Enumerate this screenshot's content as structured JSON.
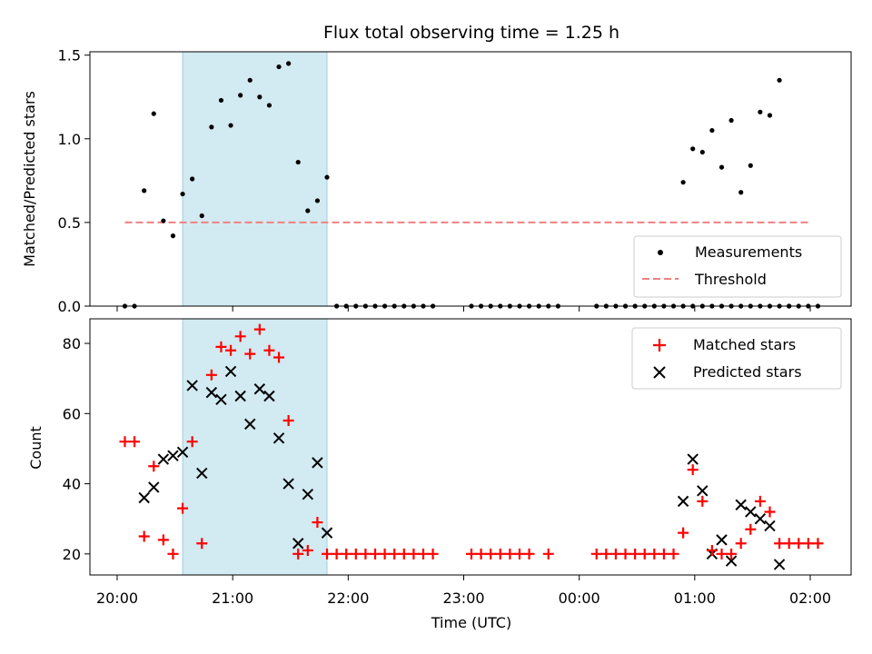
{
  "chart_data": [
    {
      "type": "scatter",
      "title": "Flux total observing time = 1.25 h",
      "xlabel": "",
      "ylabel": "Matched/Predicted stars",
      "ylim": [
        0,
        1.52
      ],
      "yticks": [
        "0.0",
        "0.5",
        "1.0",
        "1.5"
      ],
      "ytick_values": [
        0,
        0.5,
        1.0,
        1.5
      ],
      "shaded_interval": [
        "20:34",
        "21:49"
      ],
      "legend_position": "lower-right",
      "series": [
        {
          "name": "Measurements",
          "marker": "dot",
          "color": "#000000",
          "points": [
            [
              "20:04",
              0
            ],
            [
              "20:09",
              0
            ],
            [
              "20:14",
              0.69
            ],
            [
              "20:19",
              1.15
            ],
            [
              "20:24",
              0.51
            ],
            [
              "20:29",
              0.42
            ],
            [
              "20:34",
              0.67
            ],
            [
              "20:39",
              0.76
            ],
            [
              "20:44",
              0.54
            ],
            [
              "20:49",
              1.07
            ],
            [
              "20:54",
              1.23
            ],
            [
              "20:59",
              1.08
            ],
            [
              "21:04",
              1.26
            ],
            [
              "21:09",
              1.35
            ],
            [
              "21:14",
              1.25
            ],
            [
              "21:19",
              1.2
            ],
            [
              "21:24",
              1.43
            ],
            [
              "21:29",
              1.45
            ],
            [
              "21:34",
              0.86
            ],
            [
              "21:39",
              0.57
            ],
            [
              "21:44",
              0.63
            ],
            [
              "21:49",
              0.77
            ],
            [
              "21:54",
              0
            ],
            [
              "21:59",
              0
            ],
            [
              "22:04",
              0
            ],
            [
              "22:09",
              0
            ],
            [
              "22:14",
              0
            ],
            [
              "22:19",
              0
            ],
            [
              "22:24",
              0
            ],
            [
              "22:29",
              0
            ],
            [
              "22:34",
              0
            ],
            [
              "22:39",
              0
            ],
            [
              "22:44",
              0
            ],
            [
              "23:04",
              0
            ],
            [
              "23:09",
              0
            ],
            [
              "23:14",
              0
            ],
            [
              "23:19",
              0
            ],
            [
              "23:24",
              0
            ],
            [
              "23:29",
              0
            ],
            [
              "23:34",
              0
            ],
            [
              "23:39",
              0
            ],
            [
              "23:44",
              0
            ],
            [
              "23:49",
              0
            ],
            [
              "00:09",
              0
            ],
            [
              "00:14",
              0
            ],
            [
              "00:19",
              0
            ],
            [
              "00:24",
              0
            ],
            [
              "00:29",
              0
            ],
            [
              "00:34",
              0
            ],
            [
              "00:39",
              0
            ],
            [
              "00:44",
              0
            ],
            [
              "00:49",
              0
            ],
            [
              "00:54",
              0
            ],
            [
              "00:59",
              0
            ],
            [
              "01:04",
              0
            ],
            [
              "01:09",
              0
            ],
            [
              "01:14",
              0
            ],
            [
              "01:19",
              0
            ],
            [
              "01:24",
              0
            ],
            [
              "01:29",
              0
            ],
            [
              "01:34",
              0
            ],
            [
              "01:39",
              0
            ],
            [
              "01:44",
              0
            ],
            [
              "01:49",
              0
            ],
            [
              "00:54",
              0.74
            ],
            [
              "00:59",
              0.94
            ],
            [
              "01:04",
              0.92
            ],
            [
              "01:09",
              1.05
            ],
            [
              "01:14",
              0.83
            ],
            [
              "01:19",
              1.11
            ],
            [
              "01:24",
              0.68
            ],
            [
              "01:29",
              0.84
            ],
            [
              "01:34",
              1.16
            ],
            [
              "01:39",
              1.14
            ],
            [
              "01:44",
              1.35
            ],
            [
              "01:49",
              0
            ],
            [
              "01:54",
              0
            ],
            [
              "01:59",
              0
            ],
            [
              "02:04",
              0
            ]
          ]
        },
        {
          "name": "Threshold",
          "style": "dashed",
          "color": "#f08080",
          "points": [
            [
              "20:04",
              0.5
            ],
            [
              "02:00",
              0.5
            ]
          ]
        }
      ]
    },
    {
      "type": "scatter",
      "title": "",
      "xlabel": "Time (UTC)",
      "ylabel": "Count",
      "ylim": [
        14,
        87
      ],
      "yticks": [
        "20",
        "40",
        "60",
        "80"
      ],
      "ytick_values": [
        20,
        40,
        60,
        80
      ],
      "xticks": [
        "20:00",
        "21:00",
        "22:00",
        "23:00",
        "00:00",
        "01:00",
        "02:00"
      ],
      "shaded_interval": [
        "20:34",
        "21:49"
      ],
      "legend_position": "upper-right",
      "series": [
        {
          "name": "Matched stars",
          "marker": "plus",
          "color": "#ff0000",
          "points": [
            [
              "20:04",
              52
            ],
            [
              "20:09",
              52
            ],
            [
              "20:14",
              25
            ],
            [
              "20:19",
              45
            ],
            [
              "20:24",
              24
            ],
            [
              "20:29",
              20
            ],
            [
              "20:34",
              33
            ],
            [
              "20:39",
              52
            ],
            [
              "20:44",
              23
            ],
            [
              "20:49",
              71
            ],
            [
              "20:54",
              79
            ],
            [
              "20:59",
              78
            ],
            [
              "21:04",
              82
            ],
            [
              "21:09",
              77
            ],
            [
              "21:14",
              84
            ],
            [
              "21:19",
              78
            ],
            [
              "21:24",
              76
            ],
            [
              "21:29",
              58
            ],
            [
              "21:34",
              20
            ],
            [
              "21:39",
              21
            ],
            [
              "21:44",
              29
            ],
            [
              "21:49",
              20
            ],
            [
              "21:54",
              20
            ],
            [
              "21:59",
              20
            ],
            [
              "22:04",
              20
            ],
            [
              "22:09",
              20
            ],
            [
              "22:14",
              20
            ],
            [
              "22:19",
              20
            ],
            [
              "22:24",
              20
            ],
            [
              "22:29",
              20
            ],
            [
              "22:34",
              20
            ],
            [
              "22:39",
              20
            ],
            [
              "22:44",
              20
            ],
            [
              "23:04",
              20
            ],
            [
              "23:09",
              20
            ],
            [
              "23:14",
              20
            ],
            [
              "23:19",
              20
            ],
            [
              "23:24",
              20
            ],
            [
              "23:29",
              20
            ],
            [
              "23:34",
              20
            ],
            [
              "23:44",
              20
            ],
            [
              "00:09",
              20
            ],
            [
              "00:14",
              20
            ],
            [
              "00:19",
              20
            ],
            [
              "00:24",
              20
            ],
            [
              "00:29",
              20
            ],
            [
              "00:34",
              20
            ],
            [
              "00:39",
              20
            ],
            [
              "00:44",
              20
            ],
            [
              "00:49",
              20
            ],
            [
              "00:54",
              26
            ],
            [
              "00:59",
              44
            ],
            [
              "01:04",
              35
            ],
            [
              "01:09",
              21
            ],
            [
              "01:14",
              20
            ],
            [
              "01:19",
              20
            ],
            [
              "01:24",
              23
            ],
            [
              "01:29",
              27
            ],
            [
              "01:34",
              35
            ],
            [
              "01:39",
              32
            ],
            [
              "01:44",
              23
            ],
            [
              "01:49",
              23
            ],
            [
              "01:54",
              23
            ],
            [
              "01:59",
              23
            ],
            [
              "02:04",
              23
            ]
          ]
        },
        {
          "name": "Predicted stars",
          "marker": "x",
          "color": "#000000",
          "points": [
            [
              "20:14",
              36
            ],
            [
              "20:19",
              39
            ],
            [
              "20:24",
              47
            ],
            [
              "20:29",
              48
            ],
            [
              "20:34",
              49
            ],
            [
              "20:39",
              68
            ],
            [
              "20:44",
              43
            ],
            [
              "20:49",
              66
            ],
            [
              "20:54",
              64
            ],
            [
              "20:59",
              72
            ],
            [
              "21:04",
              65
            ],
            [
              "21:09",
              57
            ],
            [
              "21:14",
              67
            ],
            [
              "21:19",
              65
            ],
            [
              "21:24",
              53
            ],
            [
              "21:29",
              40
            ],
            [
              "21:34",
              23
            ],
            [
              "21:39",
              37
            ],
            [
              "21:44",
              46
            ],
            [
              "21:49",
              26
            ],
            [
              "00:54",
              35
            ],
            [
              "00:59",
              47
            ],
            [
              "01:04",
              38
            ],
            [
              "01:09",
              20
            ],
            [
              "01:14",
              24
            ],
            [
              "01:19",
              18
            ],
            [
              "01:24",
              34
            ],
            [
              "01:29",
              32
            ],
            [
              "01:34",
              30
            ],
            [
              "01:39",
              28
            ],
            [
              "01:44",
              17
            ]
          ]
        }
      ]
    }
  ]
}
